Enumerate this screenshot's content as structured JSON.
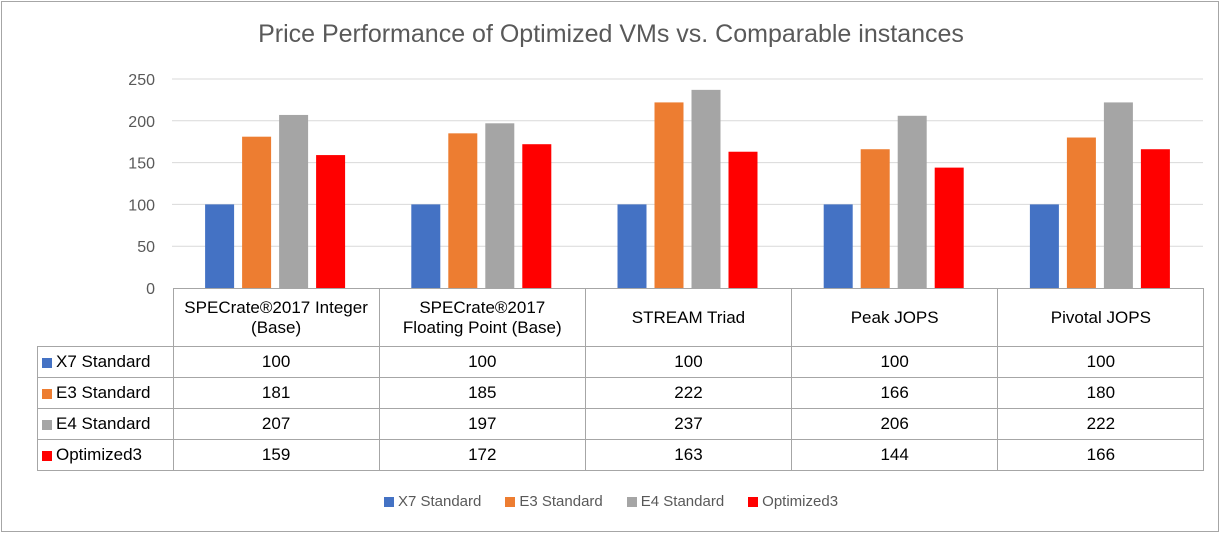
{
  "chart_data": {
    "type": "bar",
    "title": "Price Performance of Optimized VMs  vs. Comparable instances",
    "xlabel": "",
    "ylabel": "",
    "ylim": [
      0,
      250
    ],
    "yticks": [
      0,
      50,
      100,
      150,
      200,
      250
    ],
    "grid": true,
    "legend_position": "bottom",
    "categories": [
      {
        "line1": "SPECrate®2017 Integer",
        "line2": "(Base)"
      },
      {
        "line1": "SPECrate®2017",
        "line2": "Floating Point  (Base)"
      },
      {
        "line1": "STREAM Triad",
        "line2": ""
      },
      {
        "line1": "Peak JOPS",
        "line2": ""
      },
      {
        "line1": "Pivotal JOPS",
        "line2": ""
      }
    ],
    "series": [
      {
        "name": "X7 Standard",
        "color": "#4472c4",
        "values": [
          100,
          100,
          100,
          100,
          100
        ]
      },
      {
        "name": "E3 Standard",
        "color": "#ed7d31",
        "values": [
          181,
          185,
          222,
          166,
          180
        ]
      },
      {
        "name": "E4 Standard",
        "color": "#a5a5a5",
        "values": [
          207,
          197,
          237,
          206,
          222
        ]
      },
      {
        "name": "Optimized3",
        "color": "#ff0000",
        "values": [
          159,
          172,
          163,
          144,
          166
        ]
      }
    ]
  }
}
